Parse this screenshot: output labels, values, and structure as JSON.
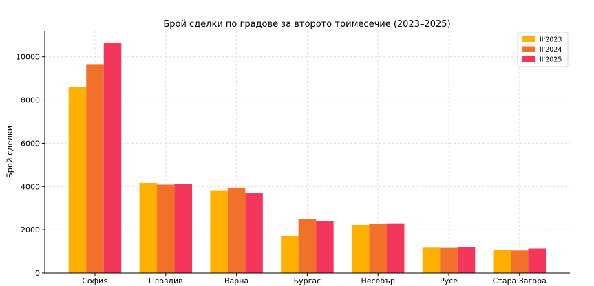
{
  "chart_data": {
    "type": "bar",
    "title": "Брой сделки по градове за второто тримесечие (2023–2025)",
    "xlabel": "",
    "ylabel": "Брой сделки",
    "categories": [
      "София",
      "Пловдив",
      "Варна",
      "Бургас",
      "Несебър",
      "Русе",
      "Стара Загора"
    ],
    "series": [
      {
        "name": "II'2023",
        "color": "#FFB000",
        "values": [
          8620,
          4170,
          3800,
          1720,
          2230,
          1200,
          1080
        ]
      },
      {
        "name": "II'2024",
        "color": "#F2712A",
        "values": [
          9660,
          4090,
          3950,
          2490,
          2260,
          1190,
          1040
        ]
      },
      {
        "name": "II'2025",
        "color": "#F5365C",
        "values": [
          10660,
          4130,
          3690,
          2390,
          2270,
          1210,
          1130
        ]
      }
    ],
    "ylim": [
      0,
      11200
    ],
    "yticks": [
      0,
      2000,
      4000,
      6000,
      8000,
      10000
    ],
    "grid": true,
    "legend_position": "top-right"
  }
}
